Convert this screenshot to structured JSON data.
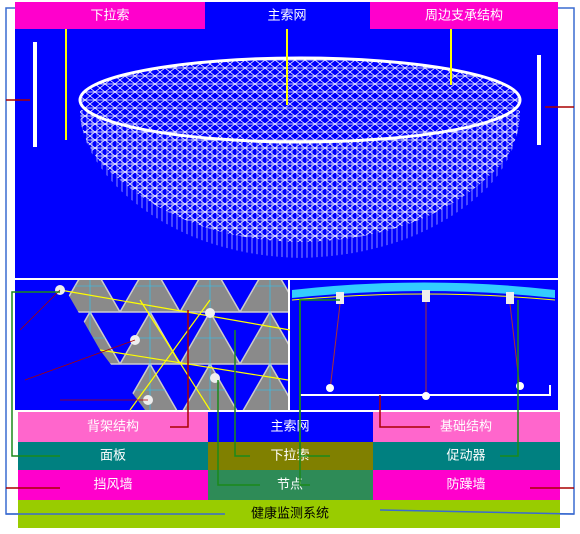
{
  "top_labels": [
    "下拉索",
    "主索网",
    "周边支承结构"
  ],
  "rows": [
    [
      "背架结构",
      "主索网",
      "基础结构"
    ],
    [
      "面板",
      "下拉索",
      "促动器"
    ],
    [
      "挡风墙",
      "节点",
      "防躁墙"
    ]
  ],
  "footer": "健康监测系统"
}
